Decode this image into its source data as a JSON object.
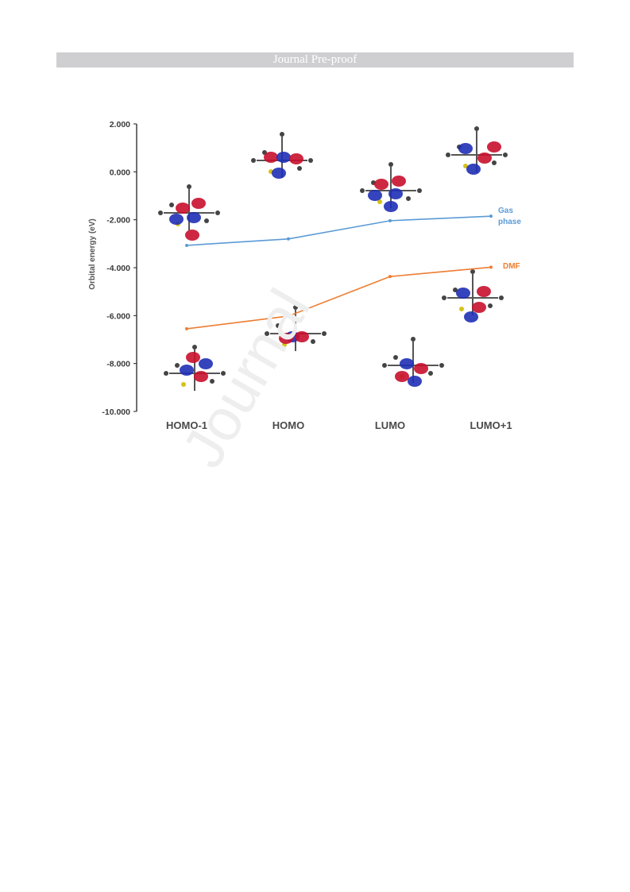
{
  "banner": "Journal Pre-proof",
  "watermark": "Journal",
  "colors": {
    "gas": "#5b9bd5",
    "dmf": "#ed7d31",
    "banner": "#cfcfd2"
  },
  "chart_data": {
    "type": "line",
    "title": "",
    "xlabel": "",
    "ylabel": "Orbital energy (eV)",
    "categories": [
      "HOMO-1",
      "HOMO",
      "LUMO",
      "LUMO+1"
    ],
    "ylim": [
      -10,
      2
    ],
    "yticks": [
      2,
      0,
      -2,
      -4,
      -6,
      -8,
      -10
    ],
    "ytick_labels": [
      "2.000",
      "0.000",
      "-2.000",
      "-4.000",
      "-6.000",
      "-8.000",
      "-10.000"
    ],
    "grid": false,
    "series": [
      {
        "name": "Gas phase",
        "label_lines": [
          "Gas",
          "phase"
        ],
        "color": "#5b9bd5",
        "values": [
          -3.07,
          -2.8,
          -2.04,
          -1.85
        ]
      },
      {
        "name": "DMF",
        "label_lines": [
          "DMF"
        ],
        "color": "#ed7d31",
        "values": [
          -6.55,
          -6.02,
          -4.37,
          -3.98
        ]
      }
    ],
    "annotations": [
      "molecular orbital isosurface renderings for each orbital"
    ]
  }
}
